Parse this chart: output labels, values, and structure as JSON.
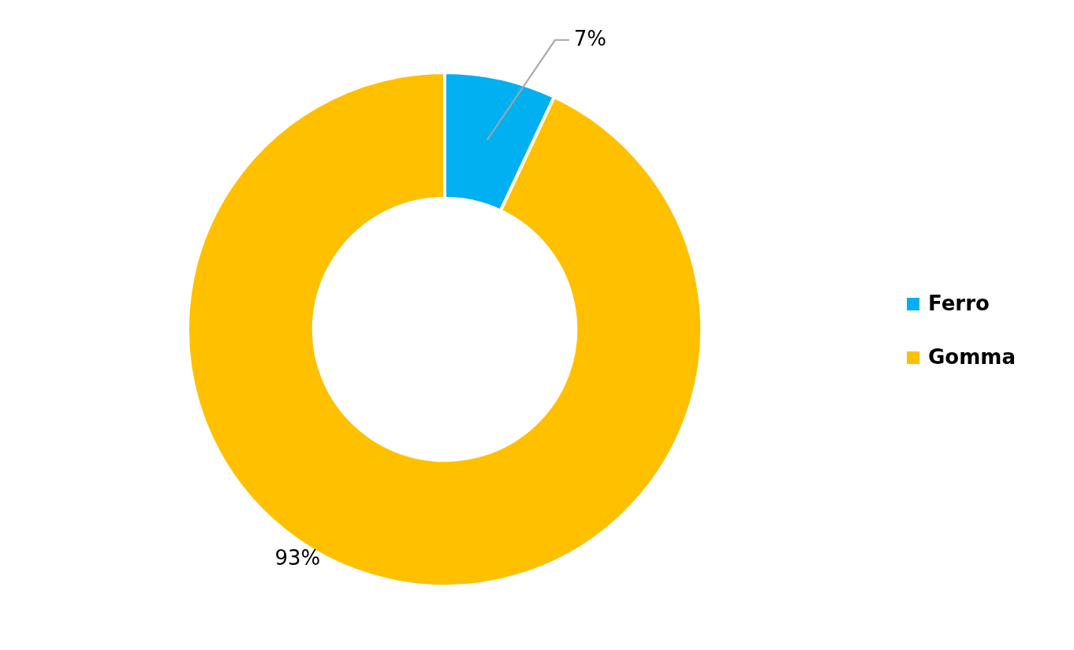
{
  "chart_data": {
    "type": "donut",
    "categories": [
      "Ferro",
      "Gomma"
    ],
    "values": [
      7,
      93
    ],
    "colors": [
      "#00b0f0",
      "#ffc000"
    ],
    "value_labels": [
      "7%",
      "93%"
    ],
    "legend": "right"
  }
}
